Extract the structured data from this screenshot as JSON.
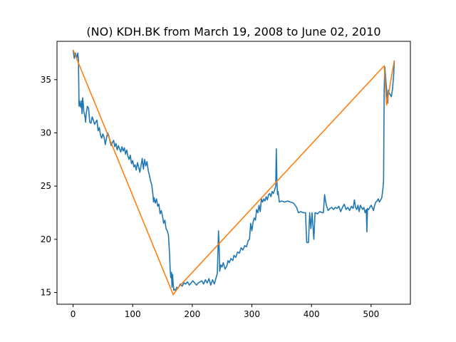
{
  "chart_data": {
    "type": "line",
    "title": "(NO) KDH.BK from March 19, 2008 to June 02, 2010",
    "xlabel": "",
    "ylabel": "",
    "xlim": [
      -27,
      566
    ],
    "ylim": [
      13.9,
      38.6
    ],
    "xticks": [
      0,
      100,
      200,
      300,
      400,
      500
    ],
    "yticks": [
      15,
      20,
      25,
      30,
      35
    ],
    "grid": false,
    "series": [
      {
        "color": "#1f77b4",
        "points": [
          [
            0,
            37.8
          ],
          [
            2,
            37.0
          ],
          [
            4,
            37.5
          ],
          [
            5,
            37.2
          ],
          [
            6,
            37.0
          ],
          [
            7,
            37.3
          ],
          [
            8,
            37.5
          ],
          [
            9,
            36.8
          ],
          [
            10,
            32.5
          ],
          [
            11,
            33.0
          ],
          [
            12,
            32.6
          ],
          [
            13,
            32.4
          ],
          [
            14,
            33.0
          ],
          [
            15,
            31.8
          ],
          [
            16,
            33.3
          ],
          [
            17,
            32.8
          ],
          [
            18,
            32.0
          ],
          [
            20,
            31.5
          ],
          [
            21,
            31.0
          ],
          [
            22,
            31.8
          ],
          [
            24,
            32.5
          ],
          [
            26,
            32.3
          ],
          [
            28,
            31.0
          ],
          [
            30,
            30.9
          ],
          [
            32,
            31.5
          ],
          [
            34,
            31.2
          ],
          [
            36,
            30.8
          ],
          [
            38,
            31.0
          ],
          [
            40,
            31.2
          ],
          [
            42,
            30.2
          ],
          [
            44,
            30.5
          ],
          [
            46,
            29.8
          ],
          [
            48,
            29.5
          ],
          [
            50,
            29.9
          ],
          [
            52,
            29.6
          ],
          [
            54,
            28.9
          ],
          [
            56,
            29.5
          ],
          [
            58,
            30.0
          ],
          [
            60,
            29.7
          ],
          [
            62,
            29.2
          ],
          [
            64,
            28.8
          ],
          [
            66,
            29.1
          ],
          [
            68,
            29.3
          ],
          [
            70,
            28.7
          ],
          [
            72,
            29.0
          ],
          [
            74,
            28.4
          ],
          [
            76,
            28.8
          ],
          [
            78,
            28.5
          ],
          [
            80,
            28.2
          ],
          [
            82,
            28.7
          ],
          [
            84,
            28.3
          ],
          [
            86,
            28.6
          ],
          [
            88,
            28.0
          ],
          [
            90,
            28.4
          ],
          [
            92,
            27.8
          ],
          [
            94,
            27.5
          ],
          [
            96,
            27.9
          ],
          [
            98,
            27.1
          ],
          [
            100,
            27.4
          ],
          [
            102,
            26.8
          ],
          [
            104,
            27.0
          ],
          [
            106,
            26.5
          ],
          [
            108,
            27.2
          ],
          [
            110,
            26.8
          ],
          [
            112,
            26.3
          ],
          [
            114,
            26.9
          ],
          [
            116,
            27.6
          ],
          [
            118,
            26.6
          ],
          [
            120,
            27.5
          ],
          [
            122,
            26.9
          ],
          [
            124,
            27.3
          ],
          [
            126,
            26.5
          ],
          [
            128,
            26.0
          ],
          [
            130,
            25.5
          ],
          [
            132,
            25.1
          ],
          [
            134,
            24.2
          ],
          [
            135,
            23.5
          ],
          [
            136,
            23.9
          ],
          [
            138,
            23.4
          ],
          [
            140,
            23.8
          ],
          [
            142,
            23.1
          ],
          [
            144,
            23.3
          ],
          [
            146,
            22.4
          ],
          [
            148,
            22.7
          ],
          [
            150,
            22.2
          ],
          [
            152,
            21.5
          ],
          [
            154,
            21.8
          ],
          [
            156,
            21.0
          ],
          [
            158,
            20.8
          ],
          [
            160,
            20.4
          ],
          [
            162,
            18.5
          ],
          [
            163,
            17.0
          ],
          [
            164,
            16.4
          ],
          [
            165,
            16.9
          ],
          [
            166,
            15.5
          ],
          [
            167,
            16.7
          ],
          [
            168,
            15.8
          ],
          [
            169,
            15.2
          ],
          [
            170,
            15.3
          ],
          [
            172,
            15.2
          ],
          [
            174,
            15.5
          ],
          [
            176,
            15.4
          ],
          [
            178,
            15.6
          ],
          [
            180,
            15.8
          ],
          [
            183,
            15.6
          ],
          [
            186,
            15.9
          ],
          [
            189,
            15.8
          ],
          [
            192,
            16.0
          ],
          [
            195,
            15.7
          ],
          [
            198,
            15.9
          ],
          [
            201,
            16.1
          ],
          [
            204,
            15.9
          ],
          [
            207,
            15.7
          ],
          [
            210,
            15.9
          ],
          [
            213,
            16.0
          ],
          [
            216,
            16.1
          ],
          [
            219,
            15.8
          ],
          [
            222,
            16.2
          ],
          [
            225,
            15.9
          ],
          [
            228,
            16.3
          ],
          [
            231,
            15.7
          ],
          [
            234,
            16.2
          ],
          [
            237,
            15.8
          ],
          [
            240,
            16.4
          ],
          [
            242,
            16.8
          ],
          [
            243,
            18.7
          ],
          [
            244,
            20.8
          ],
          [
            245,
            19.4
          ],
          [
            246,
            17.0
          ],
          [
            248,
            17.6
          ],
          [
            250,
            17.4
          ],
          [
            252,
            17.8
          ],
          [
            255,
            17.2
          ],
          [
            258,
            17.5
          ],
          [
            260,
            18.0
          ],
          [
            262,
            17.8
          ],
          [
            265,
            18.2
          ],
          [
            268,
            18.0
          ],
          [
            270,
            18.5
          ],
          [
            273,
            18.3
          ],
          [
            276,
            18.8
          ],
          [
            279,
            18.7
          ],
          [
            282,
            19.2
          ],
          [
            285,
            19.0
          ],
          [
            288,
            19.4
          ],
          [
            291,
            19.3
          ],
          [
            294,
            19.9
          ],
          [
            296,
            20.0
          ],
          [
            298,
            21.5
          ],
          [
            300,
            20.8
          ],
          [
            302,
            21.6
          ],
          [
            304,
            22.0
          ],
          [
            306,
            21.8
          ],
          [
            308,
            22.8
          ],
          [
            310,
            22.5
          ],
          [
            312,
            23.2
          ],
          [
            314,
            22.6
          ],
          [
            316,
            23.8
          ],
          [
            318,
            23.5
          ],
          [
            320,
            23.8
          ],
          [
            322,
            23.6
          ],
          [
            324,
            24.0
          ],
          [
            326,
            23.7
          ],
          [
            328,
            24.2
          ],
          [
            330,
            24.3
          ],
          [
            332,
            24.0
          ],
          [
            334,
            24.5
          ],
          [
            336,
            24.3
          ],
          [
            338,
            24.6
          ],
          [
            340,
            25.0
          ],
          [
            341,
            28.5
          ],
          [
            342,
            25.5
          ],
          [
            343,
            24.2
          ],
          [
            344,
            24.5
          ],
          [
            346,
            23.5
          ],
          [
            350,
            23.6
          ],
          [
            355,
            23.5
          ],
          [
            360,
            23.6
          ],
          [
            365,
            23.5
          ],
          [
            370,
            23.4
          ],
          [
            375,
            23.0
          ],
          [
            378,
            22.5
          ],
          [
            382,
            22.6
          ],
          [
            386,
            22.5
          ],
          [
            390,
            22.5
          ],
          [
            392,
            19.7
          ],
          [
            395,
            19.7
          ],
          [
            397,
            22.5
          ],
          [
            399,
            21.0
          ],
          [
            401,
            22.5
          ],
          [
            404,
            20.0
          ],
          [
            406,
            22.5
          ],
          [
            410,
            22.4
          ],
          [
            414,
            22.6
          ],
          [
            418,
            22.5
          ],
          [
            420,
            22.5
          ],
          [
            422,
            24.2
          ],
          [
            423,
            23.8
          ],
          [
            425,
            23.2
          ],
          [
            428,
            22.7
          ],
          [
            431,
            22.9
          ],
          [
            434,
            23.0
          ],
          [
            437,
            22.8
          ],
          [
            440,
            23.0
          ],
          [
            443,
            22.9
          ],
          [
            446,
            23.1
          ],
          [
            449,
            22.6
          ],
          [
            452,
            23.0
          ],
          [
            455,
            23.3
          ],
          [
            458,
            22.8
          ],
          [
            461,
            23.0
          ],
          [
            464,
            22.7
          ],
          [
            467,
            23.1
          ],
          [
            470,
            22.9
          ],
          [
            472,
            23.7
          ],
          [
            474,
            23.0
          ],
          [
            476,
            22.8
          ],
          [
            478,
            23.2
          ],
          [
            480,
            22.6
          ],
          [
            482,
            23.2
          ],
          [
            484,
            23.0
          ],
          [
            486,
            22.8
          ],
          [
            488,
            23.0
          ],
          [
            490,
            22.5
          ],
          [
            492,
            22.8
          ],
          [
            493,
            20.7
          ],
          [
            494,
            22.9
          ],
          [
            496,
            22.8
          ],
          [
            498,
            23.0
          ],
          [
            500,
            23.2
          ],
          [
            502,
            23.0
          ],
          [
            504,
            22.7
          ],
          [
            506,
            23.2
          ],
          [
            508,
            23.5
          ],
          [
            510,
            23.6
          ],
          [
            512,
            23.8
          ],
          [
            514,
            23.5
          ],
          [
            516,
            23.7
          ],
          [
            518,
            23.9
          ],
          [
            520,
            24.8
          ],
          [
            521,
            25.5
          ],
          [
            522,
            34.0
          ],
          [
            523,
            36.2
          ],
          [
            525,
            34.8
          ],
          [
            527,
            33.4
          ],
          [
            528,
            32.8
          ],
          [
            529,
            34.0
          ],
          [
            530,
            33.8
          ],
          [
            532,
            33.6
          ],
          [
            534,
            33.4
          ],
          [
            536,
            34.1
          ],
          [
            538,
            35.5
          ],
          [
            539,
            36.8
          ]
        ]
      },
      {
        "color": "#ff7f0e",
        "points": [
          [
            0,
            37.8
          ],
          [
            168,
            14.8
          ],
          [
            177,
            15.5
          ],
          [
            522,
            36.3
          ],
          [
            526,
            32.6
          ],
          [
            539,
            36.8
          ]
        ]
      }
    ]
  }
}
